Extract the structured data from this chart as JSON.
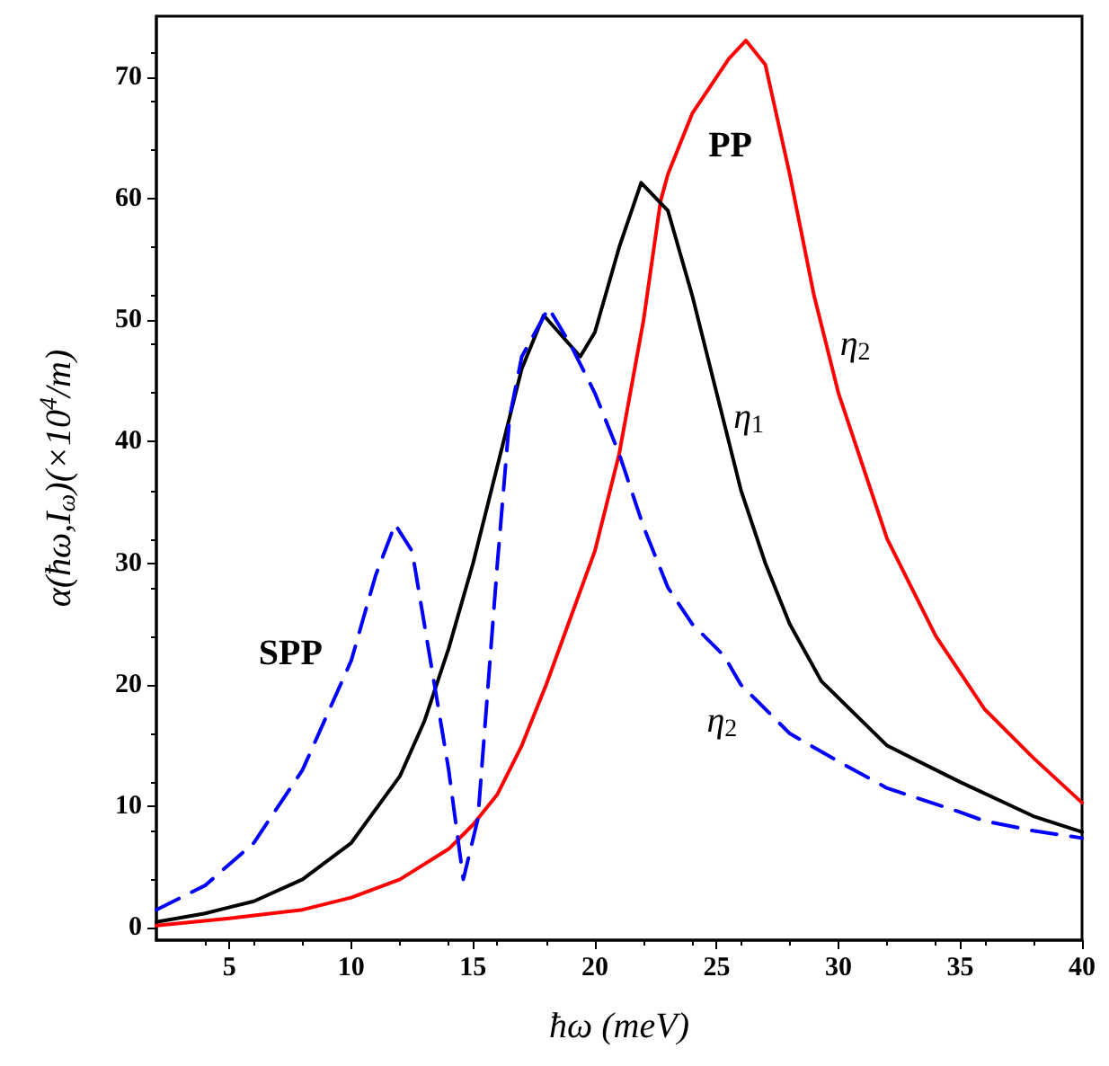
{
  "chart_data": {
    "type": "line",
    "xlabel": "ħω (meV)",
    "ylabel": "α(ħω,I$_{ω}$)(×10$^{4}$/m)",
    "xlim": [
      2,
      40
    ],
    "ylim": [
      -1,
      75
    ],
    "xticks": [
      5,
      10,
      15,
      20,
      25,
      30,
      35,
      40
    ],
    "yticks": [
      0,
      10,
      20,
      30,
      40,
      50,
      60,
      70
    ],
    "grid": false,
    "marker": "none",
    "series": [
      {
        "color": "#ff0000",
        "line_style": "solid",
        "x": [
          2,
          5,
          8,
          10,
          12,
          14,
          15,
          16,
          17,
          18,
          19,
          20,
          21,
          22,
          22.7,
          23,
          24,
          25,
          25.5,
          26.2,
          27,
          28,
          29,
          30,
          32,
          34,
          36,
          38,
          40
        ],
        "values": [
          0.2,
          0.8,
          1.5,
          2.5,
          4,
          6.5,
          8.5,
          11,
          15,
          20,
          25.5,
          31,
          39,
          50,
          59.8,
          62,
          67,
          70,
          71.5,
          73,
          71,
          62,
          52,
          44,
          32,
          24,
          18,
          14,
          10.3
        ]
      },
      {
        "color": "#000000",
        "line_style": "solid",
        "x": [
          2,
          4,
          6,
          8,
          10,
          12,
          13,
          14,
          15,
          16,
          17,
          17.9,
          19.4,
          20,
          21,
          21.9,
          23,
          24,
          25,
          26,
          27,
          28,
          29.3,
          32,
          35,
          38,
          40
        ],
        "values": [
          0.5,
          1.2,
          2.2,
          4,
          7,
          12.5,
          17,
          23,
          30,
          38,
          46,
          50.4,
          47,
          49,
          56,
          61.3,
          59,
          52,
          44,
          36,
          30,
          25,
          20.3,
          15,
          12,
          9.2,
          7.9
        ]
      },
      {
        "color": "#0000ff",
        "line_style": "dashed",
        "x": [
          2,
          4,
          6,
          8,
          10,
          11,
          11.8,
          12.5,
          13,
          14,
          14.6,
          15.2,
          16,
          16.5,
          17,
          18.1,
          19,
          20,
          21,
          22,
          23,
          24,
          25.3,
          26,
          28,
          30,
          32,
          34.9,
          36,
          38,
          40
        ],
        "values": [
          1.5,
          3.5,
          7,
          13,
          22,
          29,
          33.2,
          31,
          25,
          13,
          4,
          9,
          30,
          42,
          47,
          51,
          48,
          44,
          39,
          33,
          28,
          25,
          22.4,
          20,
          16,
          13.7,
          11.5,
          9.6,
          8.8,
          8,
          7.4
        ]
      }
    ],
    "annotations": [
      "PP",
      "η$_{2}$",
      "η$_{1}$",
      "η$_{2}$",
      "SPP"
    ]
  }
}
